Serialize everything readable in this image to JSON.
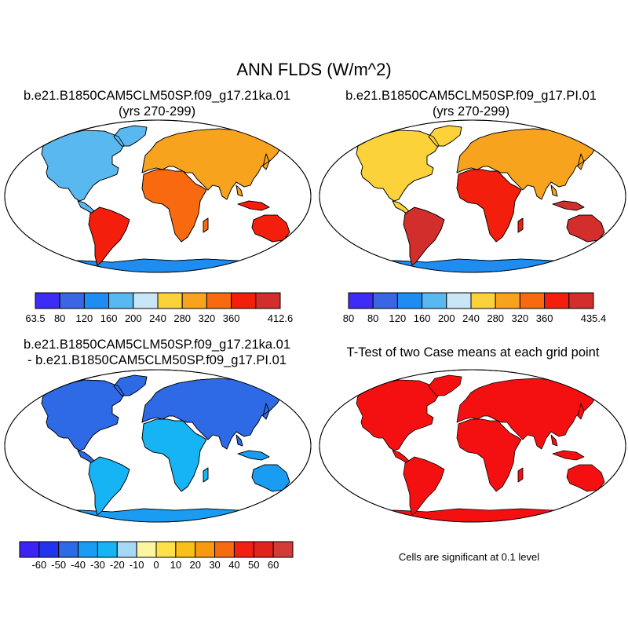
{
  "figure": {
    "title": "ANN FLDS (W/m^2)",
    "panels": [
      {
        "id": "case1",
        "title_lines": [
          "b.e21.B1850CAM5CLM50SP.f09_g17.21ka.01",
          "(yrs 270-299)"
        ],
        "colorbar": {
          "colors": [
            "#3c2cf5",
            "#3a66e4",
            "#1e8cf0",
            "#5ab8f0",
            "#c8e6f5",
            "#fbd23a",
            "#f7a31e",
            "#f96a10",
            "#f41e0c",
            "#d22e2c"
          ],
          "labels": [
            "63.5",
            "80",
            "120",
            "160",
            "200",
            "240",
            "280",
            "320",
            "360",
            "412.6"
          ]
        }
      },
      {
        "id": "case2",
        "title_lines": [
          "b.e21.B1850CAM5CLM50SP.f09_g17.PI.01",
          "(yrs 270-299)"
        ],
        "colorbar": {
          "colors": [
            "#3c2cf5",
            "#3a66e4",
            "#1e8cf0",
            "#5ab8f0",
            "#c8e6f5",
            "#fbd23a",
            "#f7a31e",
            "#f96a10",
            "#f41e0c",
            "#d22e2c"
          ],
          "labels": [
            "80",
            "80",
            "120",
            "160",
            "200",
            "240",
            "280",
            "320",
            "360",
            "435.4"
          ]
        }
      },
      {
        "id": "difference",
        "title_lines": [
          "b.e21.B1850CAM5CLM50SP.f09_g17.21ka.01",
          "- b.e21.B1850CAM5CLM50SP.f09_g17.PI.01"
        ],
        "colorbar": {
          "colors": [
            "#3c22f5",
            "#2233ee",
            "#2e6ae6",
            "#1a9cf2",
            "#16b4f4",
            "#a6d8f4",
            "#fdf6a0",
            "#fde04a",
            "#fbbf1a",
            "#f79a10",
            "#f66a10",
            "#f22010",
            "#e0241c",
            "#d43a38"
          ],
          "labels": [
            "-60",
            "-50",
            "-40",
            "-30",
            "-20",
            "-10",
            "0",
            "10",
            "20",
            "30",
            "40",
            "50",
            "60"
          ]
        }
      },
      {
        "id": "ttest",
        "title_lines": [
          "T-Test of two Case means at each grid point"
        ],
        "note": "Cells are significant at 0.1 level",
        "fill_color": "#f41010"
      }
    ]
  }
}
